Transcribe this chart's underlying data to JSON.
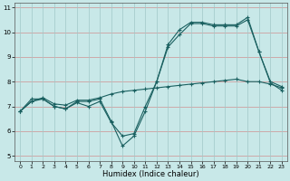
{
  "xlabel": "Humidex (Indice chaleur)",
  "background_color": "#c8e8e8",
  "grid_color_h": "#d09090",
  "grid_color_v": "#a0c8c8",
  "line_color": "#1a6060",
  "xlim": [
    -0.5,
    23.5
  ],
  "ylim": [
    4.8,
    11.2
  ],
  "xticks": [
    0,
    1,
    2,
    3,
    4,
    5,
    6,
    7,
    8,
    9,
    10,
    11,
    12,
    13,
    14,
    15,
    16,
    17,
    18,
    19,
    20,
    21,
    22,
    23
  ],
  "yticks": [
    5,
    6,
    7,
    8,
    9,
    10,
    11
  ],
  "line1_x": [
    0,
    1,
    2,
    3,
    4,
    5,
    6,
    7,
    8,
    9,
    10,
    11,
    12,
    13,
    14,
    15,
    16,
    17,
    18,
    19,
    20,
    21,
    22,
    23
  ],
  "line1_y": [
    6.8,
    7.3,
    7.3,
    7.0,
    6.9,
    7.2,
    7.2,
    7.3,
    6.4,
    5.4,
    5.8,
    6.8,
    8.0,
    9.5,
    10.1,
    10.4,
    10.4,
    10.3,
    10.3,
    10.3,
    10.6,
    9.2,
    8.0,
    7.8
  ],
  "line2_x": [
    0,
    1,
    2,
    3,
    4,
    5,
    6,
    7,
    8,
    9,
    10,
    11,
    12,
    13,
    14,
    15,
    16,
    17,
    18,
    19,
    20,
    21,
    22,
    23
  ],
  "line2_y": [
    6.8,
    7.2,
    7.3,
    7.0,
    6.9,
    7.15,
    7.0,
    7.2,
    6.35,
    5.8,
    5.9,
    7.0,
    8.0,
    9.4,
    9.9,
    10.35,
    10.35,
    10.25,
    10.25,
    10.25,
    10.5,
    9.2,
    7.95,
    7.65
  ],
  "line3_x": [
    0,
    1,
    2,
    3,
    4,
    5,
    6,
    7,
    8,
    9,
    10,
    11,
    12,
    13,
    14,
    15,
    16,
    17,
    18,
    19,
    20,
    21,
    22,
    23
  ],
  "line3_y": [
    6.8,
    7.2,
    7.35,
    7.1,
    7.05,
    7.25,
    7.25,
    7.35,
    7.5,
    7.6,
    7.65,
    7.7,
    7.75,
    7.8,
    7.85,
    7.9,
    7.95,
    8.0,
    8.05,
    8.1,
    8.0,
    8.0,
    7.9,
    7.75
  ]
}
